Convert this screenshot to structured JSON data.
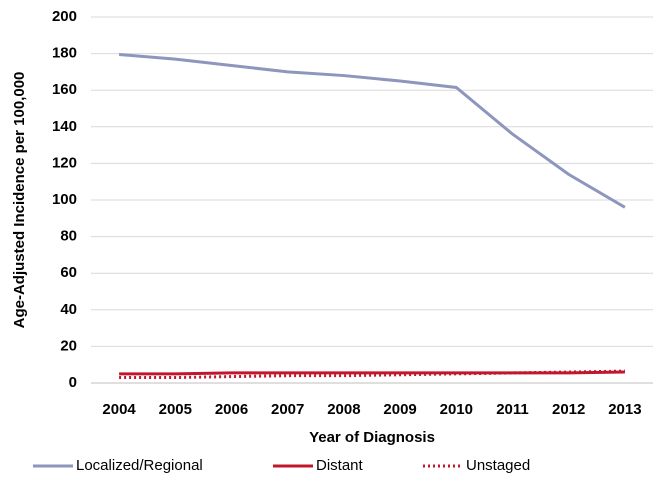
{
  "chart_data": {
    "type": "line",
    "x_label": "Year of Diagnosis",
    "y_label": "Age-Adjusted Incidence per 100,000",
    "x": [
      2004,
      2005,
      2006,
      2007,
      2008,
      2009,
      2010,
      2011,
      2012,
      2013
    ],
    "series": [
      {
        "name": "Localized/Regional",
        "color": "#8e96bd",
        "dash": "solid",
        "values": [
          179.5,
          177,
          173.5,
          170,
          168,
          165,
          161.5,
          136,
          114,
          96
        ]
      },
      {
        "name": "Distant",
        "color": "#c0172d",
        "dash": "solid",
        "values": [
          5,
          5,
          5.5,
          5.5,
          5.5,
          5.5,
          5.5,
          5.5,
          5.5,
          6
        ]
      },
      {
        "name": "Unstaged",
        "color": "#c0172d",
        "dash": "dotted",
        "values": [
          3,
          3,
          3.5,
          4,
          4,
          4.5,
          5,
          5.5,
          6,
          6.5
        ]
      }
    ],
    "ylim": [
      0,
      200
    ],
    "yticks": [
      0,
      20,
      40,
      60,
      80,
      100,
      120,
      140,
      160,
      180,
      200
    ],
    "grid": true,
    "legend": "bottom"
  }
}
